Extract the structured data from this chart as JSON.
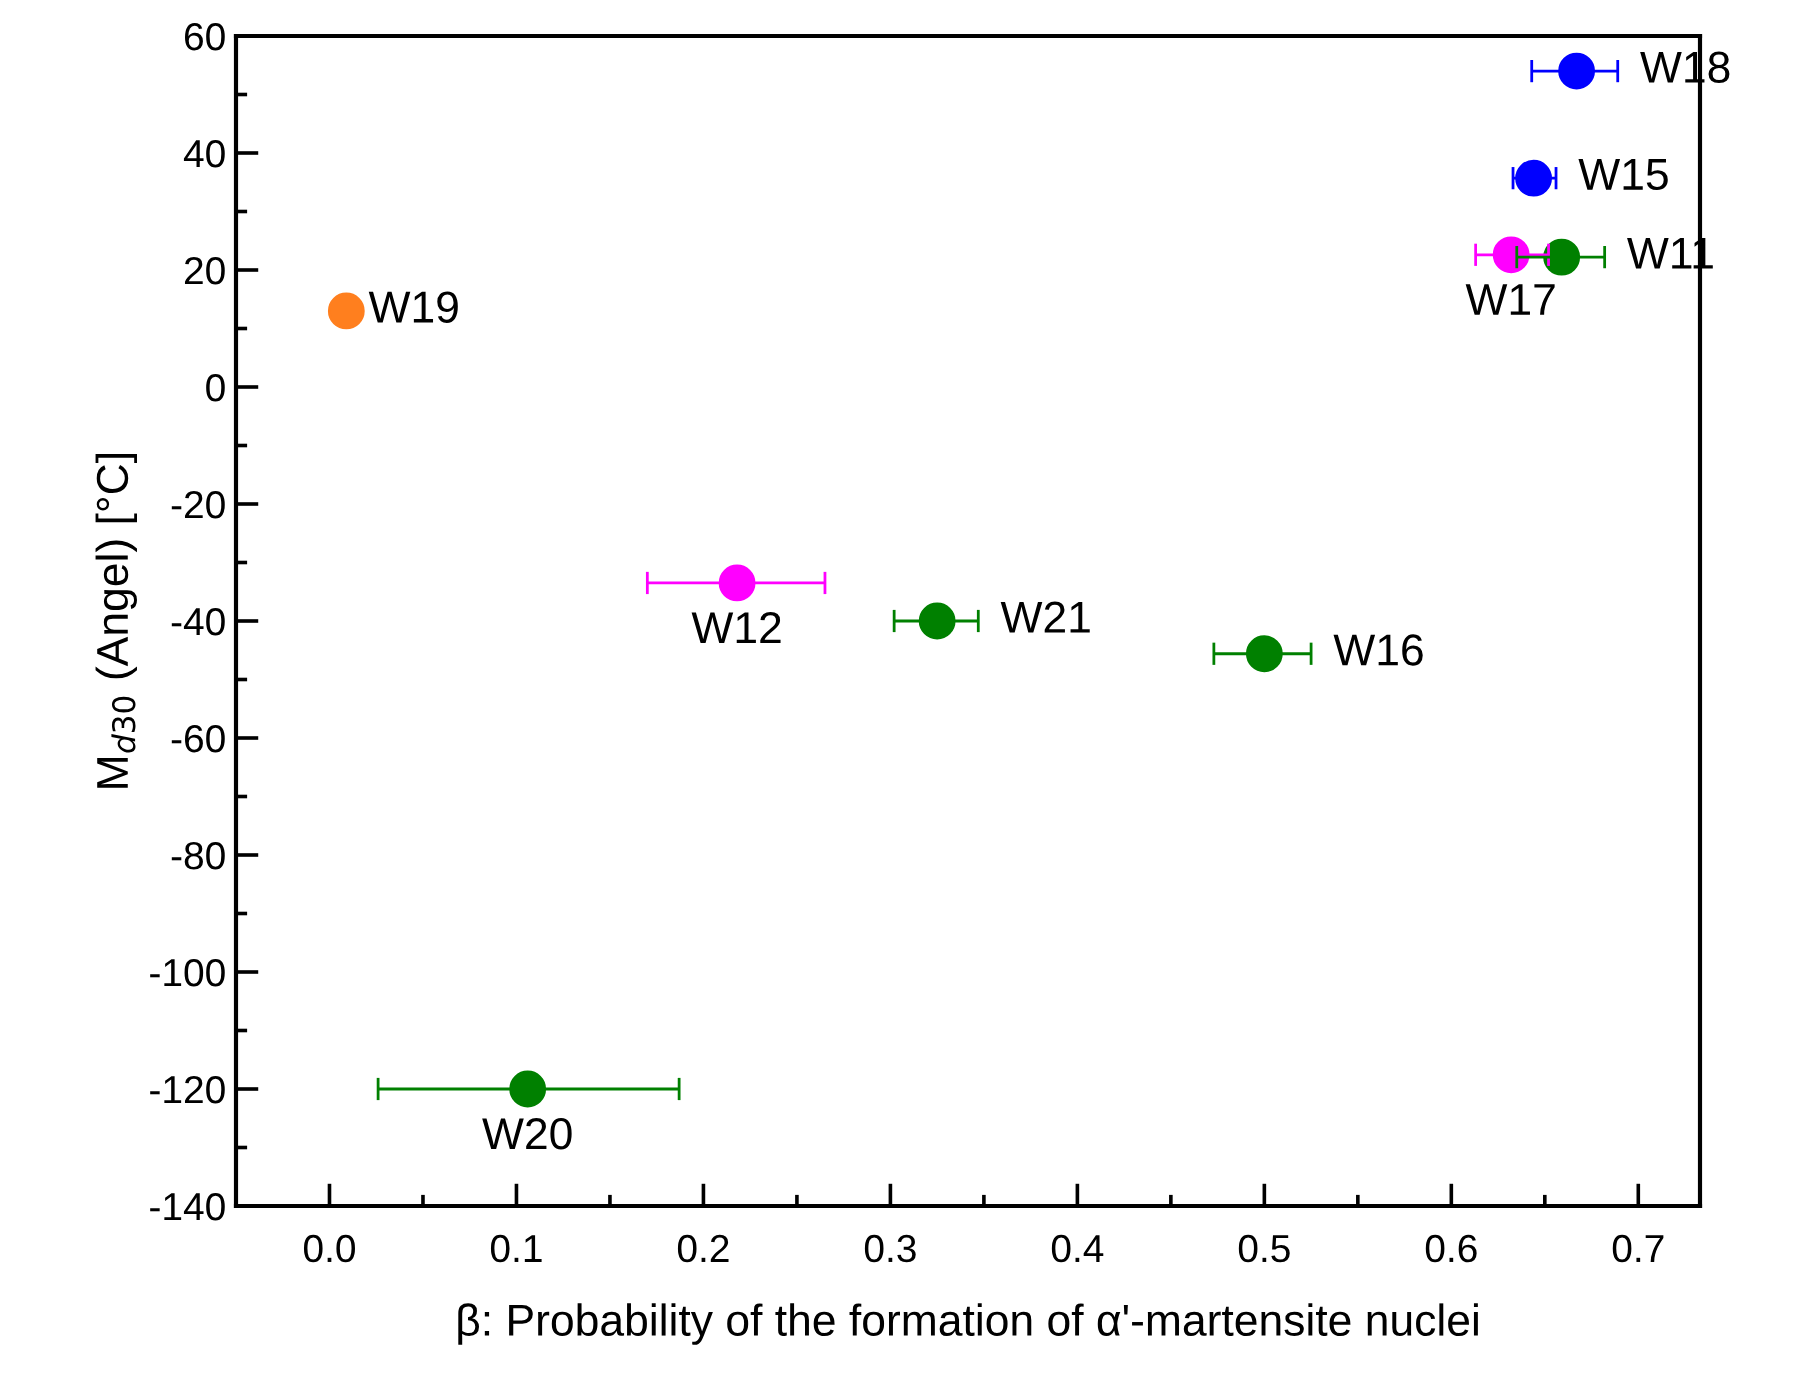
{
  "chart_data": {
    "type": "scatter",
    "xlabel": "β: Probability of the formation of α'-martensite nuclei",
    "ylabel": "M$_{d30}$ (Angel) [°C]",
    "x": [
      0.009,
      0.667,
      0.644,
      0.632,
      0.659,
      0.218,
      0.325,
      0.5,
      0.106
    ],
    "values": [
      13,
      54,
      35.7,
      22.6,
      22.2,
      -33.5,
      -40,
      -45.6,
      -120
    ],
    "colors": [
      "#ff7f1e",
      "#0000ff",
      "#0000ff",
      "#ff00ff",
      "#008000",
      "#ff00ff",
      "#008000",
      "#008000",
      "#008000"
    ],
    "xerrors": [
      null,
      [
        0.643,
        0.689
      ],
      [
        0.633,
        0.656
      ],
      [
        0.613,
        0.652
      ],
      [
        0.635,
        0.682
      ],
      [
        0.17,
        0.265
      ],
      [
        0.302,
        0.347
      ],
      [
        0.473,
        0.525
      ],
      [
        0.026,
        0.187
      ]
    ],
    "annotations": [
      {
        "text": "W19",
        "x": 0.009,
        "y": 13
      },
      {
        "text": "W18",
        "x": 0.667,
        "y": 54
      },
      {
        "text": "W15",
        "x": 0.644,
        "y": 35.7
      },
      {
        "text": "W17",
        "x": 0.632,
        "y": 22.6
      },
      {
        "text": "W11",
        "x": 0.659,
        "y": 22.2
      },
      {
        "text": "W12",
        "x": 0.218,
        "y": -33.5
      },
      {
        "text": "W21",
        "x": 0.325,
        "y": -40
      },
      {
        "text": "W16",
        "x": 0.5,
        "y": -45.6
      },
      {
        "text": "W20",
        "x": 0.106,
        "y": -120
      }
    ],
    "xlim": [
      -0.05,
      0.733
    ],
    "xticks": [
      {
        "value": 0,
        "label": "0.0"
      },
      0.1,
      0.2,
      0.3,
      0.4,
      0.5,
      0.6,
      0.7
    ],
    "ylim": [
      -140,
      60
    ],
    "yticks": [
      -140,
      -120,
      -100,
      -80,
      -60,
      -40,
      -20,
      0,
      20,
      40,
      60
    ],
    "grid": false,
    "legend": false,
    "marker": "circle"
  }
}
